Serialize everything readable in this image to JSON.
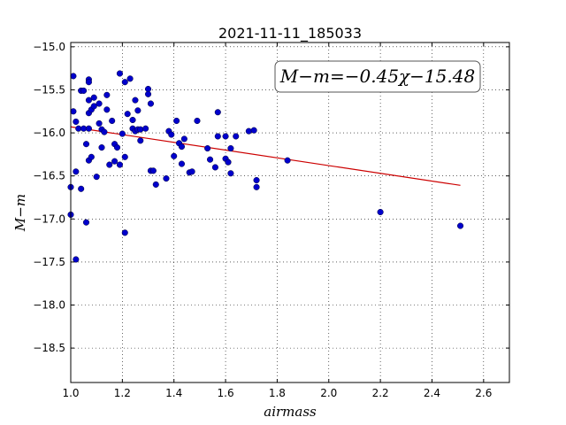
{
  "chart_data": {
    "type": "scatter",
    "title": "2021-11-11_185033",
    "xlabel": "airmass",
    "ylabel": "M−m",
    "xlim": [
      1.0,
      2.7
    ],
    "ylim": [
      -18.9,
      -14.95
    ],
    "y_inverted": true,
    "grid": true,
    "xticks": [
      "1.0",
      "1.2",
      "1.4",
      "1.6",
      "1.8",
      "2.0",
      "2.2",
      "2.4",
      "2.6"
    ],
    "yticks": [
      "−15.0",
      "−15.5",
      "−16.0",
      "−16.5",
      "−17.0",
      "−17.5",
      "−18.0",
      "−18.5"
    ],
    "annotation": "M−m=−0.45χ−15.48",
    "point_color": "#0000cc",
    "fit_color": "#cc0000",
    "fit": {
      "slope": -0.45,
      "intercept": -15.48,
      "x_range": [
        1.0,
        2.51
      ]
    },
    "points": [
      {
        "x": 1.0,
        "y": -16.63
      },
      {
        "x": 1.0,
        "y": -16.95
      },
      {
        "x": 1.01,
        "y": -15.34
      },
      {
        "x": 1.01,
        "y": -15.75
      },
      {
        "x": 1.02,
        "y": -15.87
      },
      {
        "x": 1.02,
        "y": -16.45
      },
      {
        "x": 1.02,
        "y": -17.47
      },
      {
        "x": 1.03,
        "y": -15.95
      },
      {
        "x": 1.04,
        "y": -16.65
      },
      {
        "x": 1.04,
        "y": -15.51
      },
      {
        "x": 1.05,
        "y": -15.51
      },
      {
        "x": 1.05,
        "y": -15.95
      },
      {
        "x": 1.06,
        "y": -16.13
      },
      {
        "x": 1.06,
        "y": -17.04
      },
      {
        "x": 1.07,
        "y": -15.62
      },
      {
        "x": 1.07,
        "y": -15.77
      },
      {
        "x": 1.07,
        "y": -15.38
      },
      {
        "x": 1.07,
        "y": -15.41
      },
      {
        "x": 1.07,
        "y": -15.95
      },
      {
        "x": 1.07,
        "y": -16.32
      },
      {
        "x": 1.08,
        "y": -16.28
      },
      {
        "x": 1.08,
        "y": -15.73
      },
      {
        "x": 1.09,
        "y": -15.59
      },
      {
        "x": 1.09,
        "y": -15.69
      },
      {
        "x": 1.1,
        "y": -16.51
      },
      {
        "x": 1.11,
        "y": -15.66
      },
      {
        "x": 1.11,
        "y": -15.89
      },
      {
        "x": 1.12,
        "y": -16.17
      },
      {
        "x": 1.12,
        "y": -15.96
      },
      {
        "x": 1.13,
        "y": -15.99
      },
      {
        "x": 1.14,
        "y": -15.73
      },
      {
        "x": 1.14,
        "y": -15.56
      },
      {
        "x": 1.15,
        "y": -16.37
      },
      {
        "x": 1.16,
        "y": -15.86
      },
      {
        "x": 1.17,
        "y": -16.13
      },
      {
        "x": 1.17,
        "y": -16.33
      },
      {
        "x": 1.18,
        "y": -16.17
      },
      {
        "x": 1.19,
        "y": -15.31
      },
      {
        "x": 1.19,
        "y": -16.37
      },
      {
        "x": 1.2,
        "y": -16.01
      },
      {
        "x": 1.21,
        "y": -15.41
      },
      {
        "x": 1.21,
        "y": -16.28
      },
      {
        "x": 1.21,
        "y": -17.16
      },
      {
        "x": 1.22,
        "y": -15.78
      },
      {
        "x": 1.23,
        "y": -15.37
      },
      {
        "x": 1.24,
        "y": -15.85
      },
      {
        "x": 1.24,
        "y": -15.95
      },
      {
        "x": 1.25,
        "y": -15.98
      },
      {
        "x": 1.25,
        "y": -15.62
      },
      {
        "x": 1.26,
        "y": -15.74
      },
      {
        "x": 1.26,
        "y": -15.96
      },
      {
        "x": 1.27,
        "y": -16.09
      },
      {
        "x": 1.27,
        "y": -15.96
      },
      {
        "x": 1.29,
        "y": -15.95
      },
      {
        "x": 1.3,
        "y": -15.49
      },
      {
        "x": 1.3,
        "y": -15.55
      },
      {
        "x": 1.31,
        "y": -16.44
      },
      {
        "x": 1.31,
        "y": -15.66
      },
      {
        "x": 1.32,
        "y": -16.44
      },
      {
        "x": 1.33,
        "y": -16.6
      },
      {
        "x": 1.37,
        "y": -16.53
      },
      {
        "x": 1.38,
        "y": -15.98
      },
      {
        "x": 1.39,
        "y": -16.02
      },
      {
        "x": 1.4,
        "y": -16.27
      },
      {
        "x": 1.41,
        "y": -15.86
      },
      {
        "x": 1.42,
        "y": -16.12
      },
      {
        "x": 1.43,
        "y": -16.16
      },
      {
        "x": 1.43,
        "y": -16.36
      },
      {
        "x": 1.44,
        "y": -16.07
      },
      {
        "x": 1.46,
        "y": -16.46
      },
      {
        "x": 1.47,
        "y": -16.45
      },
      {
        "x": 1.49,
        "y": -15.86
      },
      {
        "x": 1.53,
        "y": -16.18
      },
      {
        "x": 1.54,
        "y": -16.31
      },
      {
        "x": 1.56,
        "y": -16.4
      },
      {
        "x": 1.57,
        "y": -16.04
      },
      {
        "x": 1.57,
        "y": -15.76
      },
      {
        "x": 1.6,
        "y": -16.04
      },
      {
        "x": 1.6,
        "y": -16.3
      },
      {
        "x": 1.61,
        "y": -16.34
      },
      {
        "x": 1.61,
        "y": -16.34
      },
      {
        "x": 1.62,
        "y": -16.47
      },
      {
        "x": 1.62,
        "y": -16.18
      },
      {
        "x": 1.64,
        "y": -16.04
      },
      {
        "x": 1.69,
        "y": -15.98
      },
      {
        "x": 1.71,
        "y": -15.97
      },
      {
        "x": 1.72,
        "y": -16.55
      },
      {
        "x": 1.72,
        "y": -16.63
      },
      {
        "x": 1.84,
        "y": -16.32
      },
      {
        "x": 2.2,
        "y": -16.92
      },
      {
        "x": 2.51,
        "y": -17.08
      }
    ]
  }
}
